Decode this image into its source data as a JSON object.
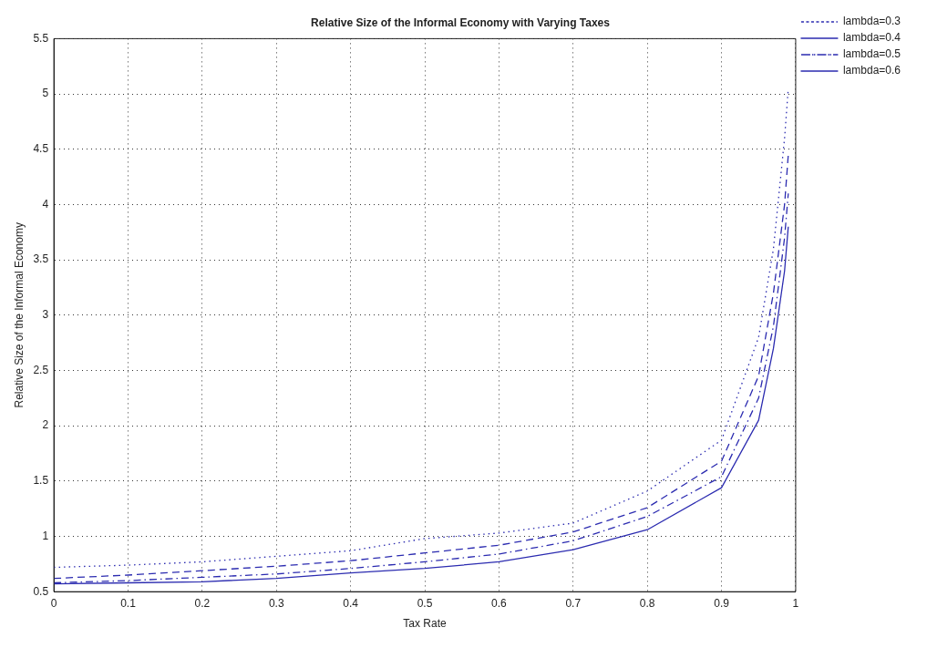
{
  "chart_data": {
    "type": "line",
    "title": "Relative Size of the Informal Economy with Varying Taxes",
    "xlabel": "Tax Rate",
    "ylabel": "Relative Size of the Informal Economy",
    "x": [
      0,
      0.1,
      0.2,
      0.3,
      0.4,
      0.5,
      0.6,
      0.7,
      0.8,
      0.9,
      0.95,
      0.97,
      0.985,
      0.99
    ],
    "series": [
      {
        "name": "lambda=0.3",
        "color": "#2b2bb0",
        "line_style": "dotted",
        "values": [
          0.72,
          0.74,
          0.77,
          0.82,
          0.87,
          0.98,
          1.03,
          1.12,
          1.41,
          1.87,
          2.8,
          3.6,
          4.6,
          5.05
        ]
      },
      {
        "name": "lambda=0.4",
        "color": "#2b2bb0",
        "line_style": "dashed",
        "values": [
          0.62,
          0.65,
          0.69,
          0.73,
          0.78,
          0.85,
          0.92,
          1.04,
          1.26,
          1.68,
          2.45,
          3.2,
          4.0,
          4.45
        ]
      },
      {
        "name": "lambda=0.5",
        "color": "#2b2bb0",
        "line_style": "dashdot",
        "values": [
          0.58,
          0.6,
          0.63,
          0.66,
          0.71,
          0.77,
          0.84,
          0.96,
          1.18,
          1.54,
          2.25,
          2.9,
          3.7,
          4.1
        ]
      },
      {
        "name": "lambda=0.6",
        "color": "#2b2bb0",
        "line_style": "solid",
        "values": [
          0.57,
          0.58,
          0.59,
          0.62,
          0.67,
          0.71,
          0.77,
          0.88,
          1.06,
          1.44,
          2.05,
          2.7,
          3.4,
          3.8
        ]
      }
    ],
    "xlim": [
      0,
      1
    ],
    "xticks": [
      0,
      0.1,
      0.2,
      0.3,
      0.4,
      0.5,
      0.6,
      0.7,
      0.8,
      0.9,
      1
    ],
    "ylim": [
      0.5,
      5.5
    ],
    "yticks": [
      0.5,
      1,
      1.5,
      2,
      2.5,
      3,
      3.5,
      4,
      4.5,
      5,
      5.5
    ],
    "grid": true,
    "legend": "top right",
    "marker": "none"
  }
}
